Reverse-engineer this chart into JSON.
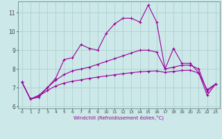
{
  "xlabel": "Windchill (Refroidissement éolien,°C)",
  "x": [
    0,
    1,
    2,
    3,
    4,
    5,
    6,
    7,
    8,
    9,
    10,
    11,
    12,
    13,
    14,
    15,
    16,
    17,
    18,
    19,
    20,
    21,
    22,
    23
  ],
  "line1": [
    7.3,
    6.4,
    6.5,
    7.0,
    7.5,
    8.5,
    8.6,
    9.3,
    9.1,
    9.0,
    9.9,
    10.4,
    10.7,
    10.7,
    10.5,
    11.4,
    10.5,
    8.0,
    9.1,
    8.3,
    8.3,
    7.8,
    6.6,
    7.2
  ],
  "line2": [
    7.3,
    6.4,
    6.6,
    7.0,
    7.4,
    7.7,
    7.9,
    8.0,
    8.1,
    8.25,
    8.4,
    8.55,
    8.7,
    8.85,
    9.0,
    9.0,
    8.9,
    8.0,
    8.1,
    8.2,
    8.2,
    8.0,
    6.8,
    7.2
  ],
  "line3": [
    7.3,
    6.4,
    6.55,
    6.85,
    7.1,
    7.25,
    7.35,
    7.42,
    7.5,
    7.57,
    7.63,
    7.69,
    7.75,
    7.8,
    7.85,
    7.88,
    7.9,
    7.82,
    7.87,
    7.92,
    7.93,
    7.78,
    6.9,
    7.2
  ],
  "line_color": "#990099",
  "bg_color": "#cce8e8",
  "grid_color": "#aacccc",
  "ylim": [
    5.9,
    11.6
  ],
  "yticks": [
    6,
    7,
    8,
    9,
    10,
    11
  ],
  "marker": "+"
}
